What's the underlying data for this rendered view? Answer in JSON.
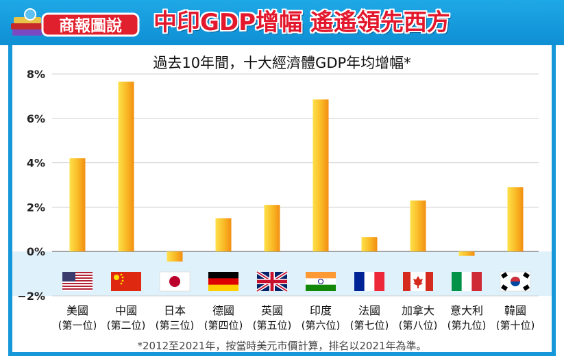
{
  "header": {
    "logo_text": "商報圖說",
    "headline": "中印GDP增幅 遙遙領先西方"
  },
  "colors": {
    "banner_blue": "#1597da",
    "headline_red": "#e3182d",
    "bar_orange": "#f7a21b",
    "bar_yellow": "#fde14a",
    "negative_band": "#dff1fb"
  },
  "chart_data": {
    "type": "bar",
    "title": "過去10年間，十大經濟體GDP年均增幅*",
    "ylim": [
      -2,
      8
    ],
    "yticks": [
      -2,
      0,
      2,
      4,
      6,
      8
    ],
    "ytick_labels": [
      "−2%",
      "0%",
      "2%",
      "4%",
      "6%",
      "8%"
    ],
    "grid": true,
    "categories": [
      "美國",
      "中國",
      "日本",
      "德國",
      "英國",
      "印度",
      "法國",
      "加拿大",
      "意大利",
      "韓國"
    ],
    "rank_labels": [
      "(第一位)",
      "(第二位)",
      "(第三位)",
      "(第四位)",
      "(第五位)",
      "(第六位)",
      "(第七位)",
      "(第八位)",
      "(第九位)",
      "(第十位)"
    ],
    "flag_icons": [
      "us-flag-icon",
      "china-flag-icon",
      "japan-flag-icon",
      "germany-flag-icon",
      "uk-flag-icon",
      "india-flag-icon",
      "france-flag-icon",
      "canada-flag-icon",
      "italy-flag-icon",
      "korea-flag-icon"
    ],
    "values": [
      4.2,
      7.65,
      -0.45,
      1.5,
      2.1,
      6.85,
      0.65,
      2.3,
      -0.2,
      2.9
    ]
  },
  "footnote": "*2012至2021年，按當時美元市價計算，排名以2021年為準。"
}
